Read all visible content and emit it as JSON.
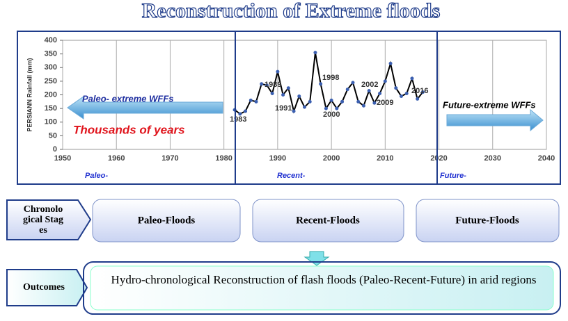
{
  "title": "Reconstruction of Extreme floods",
  "chart_data": {
    "type": "line",
    "y_label": "PERSIANN Rainfall (mm)",
    "x": [
      1982,
      1983,
      1984,
      1985,
      1986,
      1987,
      1988,
      1989,
      1990,
      1991,
      1992,
      1993,
      1994,
      1995,
      1996,
      1997,
      1998,
      1999,
      2000,
      2001,
      2002,
      2003,
      2004,
      2005,
      2006,
      2007,
      2008,
      2009,
      2010,
      2011,
      2012,
      2013,
      2014,
      2015,
      2016,
      2017
    ],
    "series": [
      {
        "name": "PERSIANN",
        "color": "#000000",
        "marker_color": "#3b5fb0",
        "values": [
          145,
          130,
          140,
          180,
          175,
          240,
          235,
          205,
          285,
          200,
          225,
          140,
          195,
          155,
          175,
          355,
          240,
          150,
          180,
          150,
          175,
          220,
          245,
          175,
          160,
          215,
          170,
          205,
          250,
          315,
          225,
          195,
          205,
          260,
          185,
          210
        ]
      }
    ],
    "xlim": [
      1950,
      2040
    ],
    "xticks": [
      1950,
      1960,
      1970,
      1980,
      1990,
      2000,
      2010,
      2020,
      2030,
      2040
    ],
    "ylim": [
      0,
      400
    ],
    "yticks": [
      0,
      50,
      100,
      150,
      200,
      250,
      300,
      350,
      400
    ],
    "grid": "x",
    "annotations": [
      "1983",
      "1989",
      "1991",
      "1998",
      "2000",
      "2002",
      "2009",
      "2016"
    ],
    "notes": {
      "paleo_arrow": "Paleo- extreme WFFs",
      "thousands": "Thousands of years",
      "future_arrow": "Future-extreme WFFs"
    },
    "periods": [
      "Paleo-",
      "Recent-",
      "Future-"
    ]
  },
  "stages": {
    "label": "Chronological Stages",
    "items": [
      "Paleo-Floods",
      "Recent-Floods",
      "Future-Floods"
    ]
  },
  "outcomes": {
    "label": "Outcomes",
    "text": "Hydro-chronological Reconstruction of flash floods  (Paleo-Recent-Future) in arid regions"
  }
}
